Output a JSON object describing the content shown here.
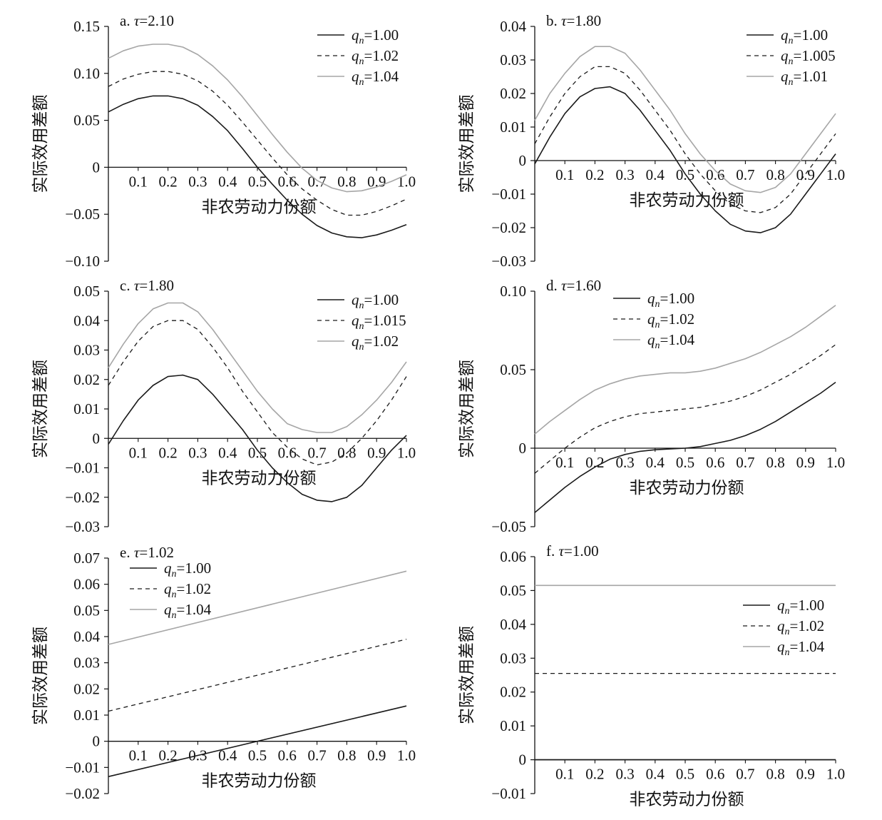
{
  "ui": {
    "ylabel": "实际效用差额",
    "xlabel": "非农劳动力份额"
  },
  "colors": {
    "black": "#1a1a1a",
    "dashed": "#1a1a1a",
    "gray": "#a6a6a6"
  },
  "chart_data": [
    {
      "id": "a",
      "type": "line",
      "title_prefix": "a. ",
      "tau_symbol": "τ",
      "tau_value": "=2.10",
      "xlabel": "非农劳动力份额",
      "ylabel": "实际效用差额",
      "xlim": [
        0,
        1.0
      ],
      "ylim": [
        -0.1,
        0.15
      ],
      "xticks": [
        "0.1",
        "0.2",
        "0.3",
        "0.4",
        "0.5",
        "0.6",
        "0.7",
        "0.8",
        "0.9",
        "1.0"
      ],
      "yticks": [
        "0.15",
        "0.10",
        "0.05",
        "0",
        "−0.05",
        "−0.10"
      ],
      "legend_position": "top-right",
      "x": [
        0,
        0.05,
        0.1,
        0.15,
        0.2,
        0.25,
        0.3,
        0.35,
        0.4,
        0.45,
        0.5,
        0.55,
        0.6,
        0.65,
        0.7,
        0.75,
        0.8,
        0.85,
        0.9,
        0.95,
        1.0
      ],
      "series": [
        {
          "q": "=1.00",
          "style": "solid",
          "values": [
            0.059,
            0.067,
            0.073,
            0.076,
            0.076,
            0.073,
            0.066,
            0.054,
            0.039,
            0.02,
            0.0,
            -0.018,
            -0.035,
            -0.05,
            -0.062,
            -0.07,
            -0.074,
            -0.075,
            -0.072,
            -0.067,
            -0.061
          ]
        },
        {
          "q": "=1.02",
          "style": "dashed",
          "values": [
            0.086,
            0.094,
            0.099,
            0.102,
            0.102,
            0.099,
            0.092,
            0.081,
            0.066,
            0.048,
            0.029,
            0.01,
            -0.008,
            -0.023,
            -0.035,
            -0.045,
            -0.051,
            -0.051,
            -0.047,
            -0.041,
            -0.034
          ]
        },
        {
          "q": "=1.04",
          "style": "gray",
          "values": [
            0.116,
            0.124,
            0.129,
            0.131,
            0.131,
            0.128,
            0.12,
            0.108,
            0.093,
            0.075,
            0.055,
            0.035,
            0.016,
            -0.001,
            -0.014,
            -0.022,
            -0.026,
            -0.025,
            -0.021,
            -0.015,
            -0.008
          ]
        }
      ]
    },
    {
      "id": "b",
      "type": "line",
      "title_prefix": "b. ",
      "tau_symbol": "τ",
      "tau_value": "=1.80",
      "xlabel": "非农劳动力份额",
      "ylabel": "实际效用差额",
      "xlim": [
        0,
        1.0
      ],
      "ylim": [
        -0.03,
        0.04
      ],
      "xticks": [
        "0.1",
        "0.2",
        "0.3",
        "0.4",
        "0.5",
        "0.6",
        "0.7",
        "0.8",
        "0.9",
        "1.0"
      ],
      "yticks": [
        "0.04",
        "0.03",
        "0.02",
        "0.01",
        "0",
        "−0.01",
        "−0.02",
        "−0.03"
      ],
      "legend_position": "top-right",
      "x": [
        0,
        0.05,
        0.1,
        0.15,
        0.2,
        0.25,
        0.3,
        0.35,
        0.4,
        0.45,
        0.5,
        0.55,
        0.6,
        0.65,
        0.7,
        0.75,
        0.8,
        0.85,
        0.9,
        0.95,
        1.0
      ],
      "series": [
        {
          "q": "=1.00",
          "style": "solid",
          "values": [
            -0.001,
            0.007,
            0.014,
            0.019,
            0.0215,
            0.022,
            0.02,
            0.015,
            0.009,
            0.003,
            -0.004,
            -0.01,
            -0.015,
            -0.019,
            -0.021,
            -0.0215,
            -0.02,
            -0.016,
            -0.01,
            -0.004,
            0.002
          ]
        },
        {
          "q": "=1.005",
          "style": "dashed",
          "values": [
            0.005,
            0.013,
            0.02,
            0.025,
            0.028,
            0.028,
            0.026,
            0.021,
            0.015,
            0.009,
            0.002,
            -0.004,
            -0.009,
            -0.013,
            -0.015,
            -0.0155,
            -0.014,
            -0.01,
            -0.004,
            0.002,
            0.008
          ]
        },
        {
          "q": "=1.01",
          "style": "gray",
          "values": [
            0.012,
            0.02,
            0.026,
            0.031,
            0.034,
            0.034,
            0.032,
            0.027,
            0.021,
            0.015,
            0.008,
            0.002,
            -0.003,
            -0.007,
            -0.009,
            -0.0095,
            -0.008,
            -0.004,
            0.002,
            0.008,
            0.014
          ]
        }
      ]
    },
    {
      "id": "c",
      "type": "line",
      "title_prefix": "c. ",
      "tau_symbol": "τ",
      "tau_value": "=1.80",
      "xlabel": "非农劳动力份额",
      "ylabel": "实际效用差额",
      "xlim": [
        0,
        1.0
      ],
      "ylim": [
        -0.03,
        0.05
      ],
      "xticks": [
        "0.1",
        "0.2",
        "0.3",
        "0.4",
        "0.5",
        "0.6",
        "0.7",
        "0.8",
        "0.9",
        "1.0"
      ],
      "yticks": [
        "0.05",
        "0.04",
        "0.03",
        "0.02",
        "0.01",
        "0",
        "−0.01",
        "−0.02",
        "−0.03"
      ],
      "legend_position": "top-right",
      "x": [
        0,
        0.05,
        0.1,
        0.15,
        0.2,
        0.25,
        0.3,
        0.35,
        0.4,
        0.45,
        0.5,
        0.55,
        0.6,
        0.65,
        0.7,
        0.75,
        0.8,
        0.85,
        0.9,
        0.95,
        1.0
      ],
      "series": [
        {
          "q": "=1.00",
          "style": "solid",
          "values": [
            -0.002,
            0.006,
            0.013,
            0.018,
            0.021,
            0.0215,
            0.02,
            0.015,
            0.009,
            0.003,
            -0.004,
            -0.01,
            -0.015,
            -0.019,
            -0.021,
            -0.0215,
            -0.02,
            -0.016,
            -0.01,
            -0.004,
            0.001
          ]
        },
        {
          "q": "=1.015",
          "style": "dashed",
          "values": [
            0.018,
            0.026,
            0.033,
            0.038,
            0.04,
            0.04,
            0.037,
            0.031,
            0.024,
            0.016,
            0.009,
            0.002,
            -0.003,
            -0.007,
            -0.009,
            -0.008,
            -0.005,
            0.0,
            0.006,
            0.013,
            0.021
          ]
        },
        {
          "q": "=1.02",
          "style": "gray",
          "values": [
            0.024,
            0.032,
            0.039,
            0.044,
            0.046,
            0.046,
            0.043,
            0.037,
            0.03,
            0.023,
            0.016,
            0.01,
            0.005,
            0.003,
            0.002,
            0.002,
            0.004,
            0.008,
            0.013,
            0.019,
            0.026
          ]
        }
      ]
    },
    {
      "id": "d",
      "type": "line",
      "title_prefix": "d. ",
      "tau_symbol": "τ",
      "tau_value": "=1.60",
      "xlabel": "非农劳动力份额",
      "ylabel": "实际效用差额",
      "xlim": [
        0,
        1.0
      ],
      "ylim": [
        -0.05,
        0.1
      ],
      "xticks": [
        "0.1",
        "0.2",
        "0.3",
        "0.4",
        "0.5",
        "0.6",
        "0.7",
        "0.8",
        "0.9",
        "1.0"
      ],
      "yticks": [
        "0.10",
        "0.05",
        "0",
        "−0.05"
      ],
      "legend_position": "top-left",
      "x": [
        0,
        0.05,
        0.1,
        0.15,
        0.2,
        0.25,
        0.3,
        0.35,
        0.4,
        0.45,
        0.5,
        0.55,
        0.6,
        0.65,
        0.7,
        0.75,
        0.8,
        0.85,
        0.9,
        0.95,
        1.0
      ],
      "series": [
        {
          "q": "=1.00",
          "style": "solid",
          "values": [
            -0.041,
            -0.033,
            -0.025,
            -0.018,
            -0.012,
            -0.007,
            -0.004,
            -0.002,
            -0.001,
            -0.0005,
            0.0,
            0.001,
            0.003,
            0.005,
            0.008,
            0.012,
            0.017,
            0.023,
            0.029,
            0.035,
            0.042
          ]
        },
        {
          "q": "=1.02",
          "style": "dashed",
          "values": [
            -0.016,
            -0.008,
            0.0,
            0.007,
            0.013,
            0.017,
            0.02,
            0.022,
            0.023,
            0.024,
            0.025,
            0.026,
            0.028,
            0.03,
            0.033,
            0.037,
            0.042,
            0.047,
            0.053,
            0.059,
            0.066
          ]
        },
        {
          "q": "=1.04",
          "style": "gray",
          "values": [
            0.009,
            0.017,
            0.024,
            0.031,
            0.037,
            0.041,
            0.044,
            0.046,
            0.047,
            0.048,
            0.048,
            0.049,
            0.051,
            0.054,
            0.057,
            0.061,
            0.066,
            0.071,
            0.077,
            0.084,
            0.091
          ]
        }
      ]
    },
    {
      "id": "e",
      "type": "line",
      "title_prefix": "e. ",
      "tau_symbol": "τ",
      "tau_value": "=1.02",
      "xlabel": "非农劳动力份额",
      "ylabel": "实际效用差额",
      "xlim": [
        0,
        1.0
      ],
      "ylim": [
        -0.02,
        0.07
      ],
      "xticks": [
        "0.1",
        "0.2",
        "0.3",
        "0.4",
        "0.5",
        "0.6",
        "0.7",
        "0.8",
        "0.9",
        "1.0"
      ],
      "yticks": [
        "0.07",
        "0.06",
        "0.05",
        "0.04",
        "0.03",
        "0.02",
        "0.01",
        "0",
        "−0.01",
        "−0.02"
      ],
      "legend_position": "top-left",
      "x": [
        0,
        1.0
      ],
      "series": [
        {
          "q": "=1.00",
          "style": "solid",
          "values": [
            -0.0135,
            0.0135
          ]
        },
        {
          "q": "=1.02",
          "style": "dashed",
          "values": [
            0.0115,
            0.039
          ]
        },
        {
          "q": "=1.04",
          "style": "gray",
          "values": [
            0.037,
            0.065
          ]
        }
      ]
    },
    {
      "id": "f",
      "type": "line",
      "title_prefix": "f. ",
      "tau_symbol": "τ",
      "tau_value": "=1.00",
      "xlabel": "非农劳动力份额",
      "ylabel": "实际效用差额",
      "xlim": [
        0,
        1.0
      ],
      "ylim": [
        -0.01,
        0.06
      ],
      "xticks": [
        "0.1",
        "0.2",
        "0.3",
        "0.4",
        "0.5",
        "0.6",
        "0.7",
        "0.8",
        "0.9",
        "1.0"
      ],
      "yticks": [
        "0.06",
        "0.05",
        "0.04",
        "0.03",
        "0.02",
        "0.01",
        "0",
        "−0.01"
      ],
      "legend_position": "right",
      "x": [
        0,
        1.0
      ],
      "series": [
        {
          "q": "=1.00",
          "style": "solid",
          "values": [
            0.0,
            0.0
          ]
        },
        {
          "q": "=1.02",
          "style": "dashed",
          "values": [
            0.0255,
            0.0255
          ]
        },
        {
          "q": "=1.04",
          "style": "gray",
          "values": [
            0.0515,
            0.0515
          ]
        }
      ]
    }
  ]
}
